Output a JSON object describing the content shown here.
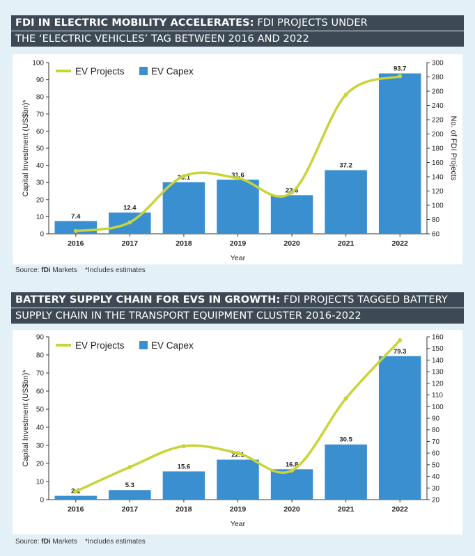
{
  "colors": {
    "bar": "#3a8fd0",
    "line": "#c8d438",
    "title_bg": "#3d4a55",
    "panel_bg": "#ffffff",
    "page_bg": "#e4f0f8"
  },
  "chart1": {
    "title_bold": "FDI IN ELECTRIC MOBILITY ACCELERATES:",
    "title_rest": " FDI PROJECTS UNDER",
    "title_line2": "THE ‘ELECTRIC VEHICLES’ TAG BETWEEN 2016 AND 2022",
    "source_label": "Source: ",
    "source_brand": "fDi",
    "source_rest": " Markets",
    "note": "*Includes estimates"
  },
  "chart2": {
    "title_bold": "BATTERY SUPPLY CHAIN FOR EVS IN GROWTH:",
    "title_rest": " FDI PROJECTS TAGGED BATTERY",
    "title_line2": "SUPPLY CHAIN IN THE TRANSPORT EQUIPMENT CLUSTER 2016-2022",
    "source_label": "Source: ",
    "source_brand": "fDi",
    "source_rest": " Markets",
    "note": "*Includes estimates"
  },
  "chart_data": [
    {
      "type": "bar",
      "categories": [
        "2016",
        "2017",
        "2018",
        "2019",
        "2020",
        "2021",
        "2022"
      ],
      "series": [
        {
          "name": "EV Capex",
          "type": "bar",
          "axis": "left",
          "values": [
            7.4,
            12.4,
            30.1,
            31.6,
            22.6,
            37.2,
            93.7
          ]
        },
        {
          "name": "EV Projects",
          "type": "line",
          "axis": "right",
          "values": [
            64,
            76,
            141,
            138,
            118,
            255,
            281
          ]
        }
      ],
      "xlabel": "Year",
      "ylabel": "Capital Investment (US$bn)*",
      "y2label": "No. of FDI Projects",
      "ylim": [
        0,
        100
      ],
      "y2lim": [
        60,
        300
      ],
      "yticks": [
        0,
        10,
        20,
        30,
        40,
        50,
        60,
        70,
        80,
        90,
        100
      ],
      "y2ticks": [
        60,
        80,
        100,
        120,
        140,
        160,
        180,
        200,
        220,
        240,
        260,
        280,
        300
      ],
      "legend": "top-left"
    },
    {
      "type": "bar",
      "categories": [
        "2016",
        "2017",
        "2018",
        "2019",
        "2020",
        "2021",
        "2022"
      ],
      "series": [
        {
          "name": "EV Capex",
          "type": "bar",
          "axis": "left",
          "values": [
            2.1,
            5.3,
            15.6,
            22.1,
            16.8,
            30.5,
            79.3
          ]
        },
        {
          "name": "EV Projects",
          "type": "line",
          "axis": "right",
          "values": [
            27,
            48,
            66,
            60,
            45,
            107,
            157
          ]
        }
      ],
      "xlabel": "Year",
      "ylabel": "Capital Investment (US$bn)*",
      "y2label": "",
      "ylim": [
        0,
        90
      ],
      "y2lim": [
        20,
        160
      ],
      "yticks": [
        0,
        10,
        20,
        30,
        40,
        50,
        60,
        70,
        80,
        90
      ],
      "y2ticks": [
        20,
        30,
        40,
        50,
        60,
        70,
        80,
        90,
        100,
        110,
        120,
        130,
        140,
        150,
        160
      ],
      "legend": "top-left"
    }
  ]
}
